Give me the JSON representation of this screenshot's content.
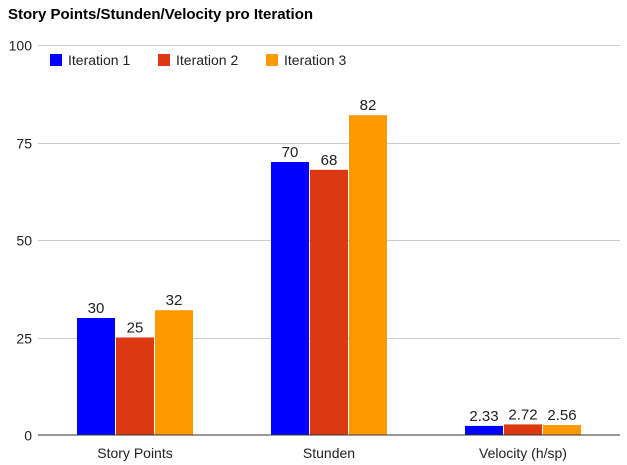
{
  "chart_data": {
    "type": "bar",
    "title": "Story Points/Stunden/Velocity pro Iteration",
    "categories": [
      "Story Points",
      "Stunden",
      "Velocity (h/sp)"
    ],
    "series": [
      {
        "name": "Iteration 1",
        "color": "#0000ff",
        "values": [
          30,
          70,
          2.33
        ]
      },
      {
        "name": "Iteration 2",
        "color": "#dc3912",
        "values": [
          25,
          68,
          2.72
        ]
      },
      {
        "name": "Iteration 3",
        "color": "#ff9900",
        "values": [
          32,
          82,
          2.56
        ]
      }
    ],
    "value_labels": [
      [
        "30",
        "70",
        "2.33"
      ],
      [
        "25",
        "68",
        "2.72"
      ],
      [
        "32",
        "82",
        "2.56"
      ]
    ],
    "y_ticks": [
      0,
      25,
      50,
      75,
      100
    ],
    "ylim": [
      0,
      100
    ],
    "xlabel": "",
    "ylabel": "",
    "grid": true,
    "legend_position": "top-left"
  }
}
